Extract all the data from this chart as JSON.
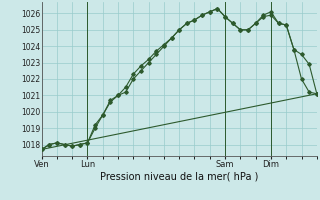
{
  "bg_color": "#cce8e8",
  "grid_color": "#99cccc",
  "line_color": "#2d5a2d",
  "title": "Pression niveau de la mer( hPa )",
  "xtick_labels": [
    "Ven",
    "Lun",
    "Sam",
    "Dim"
  ],
  "xtick_positions": [
    0,
    12,
    48,
    60
  ],
  "ylim": [
    1017.3,
    1026.7
  ],
  "yticks": [
    1018,
    1019,
    1020,
    1021,
    1022,
    1023,
    1024,
    1025,
    1026
  ],
  "xlim": [
    0,
    72
  ],
  "line1_x": [
    0,
    2,
    4,
    6,
    8,
    10,
    12,
    14,
    16,
    18,
    20,
    22,
    24,
    26,
    28,
    30,
    32,
    34,
    36,
    38,
    40,
    42,
    44,
    46,
    48,
    50,
    52,
    54,
    56,
    58,
    60,
    62,
    64,
    66,
    68,
    70,
    72
  ],
  "line1_y": [
    1017.7,
    1018.0,
    1018.1,
    1018.0,
    1017.9,
    1018.0,
    1018.1,
    1019.0,
    1019.8,
    1020.7,
    1021.0,
    1021.5,
    1022.3,
    1022.8,
    1023.2,
    1023.7,
    1024.1,
    1024.5,
    1025.0,
    1025.4,
    1025.6,
    1025.9,
    1026.1,
    1026.3,
    1025.8,
    1025.4,
    1025.0,
    1025.0,
    1025.4,
    1025.9,
    1026.1,
    1025.4,
    1025.3,
    1023.8,
    1023.5,
    1022.9,
    1021.1
  ],
  "line2_x": [
    0,
    2,
    4,
    6,
    8,
    10,
    12,
    14,
    16,
    18,
    20,
    22,
    24,
    26,
    28,
    30,
    32,
    34,
    36,
    38,
    40,
    42,
    44,
    46,
    48,
    50,
    52,
    54,
    56,
    58,
    60,
    62,
    64,
    66,
    68,
    70,
    72
  ],
  "line2_y": [
    1017.7,
    1018.0,
    1018.1,
    1018.0,
    1017.9,
    1018.0,
    1018.1,
    1019.2,
    1019.8,
    1020.6,
    1021.0,
    1021.2,
    1022.0,
    1022.5,
    1023.0,
    1023.5,
    1024.0,
    1024.5,
    1025.0,
    1025.4,
    1025.6,
    1025.9,
    1026.1,
    1026.3,
    1025.8,
    1025.4,
    1025.0,
    1025.0,
    1025.4,
    1025.8,
    1025.9,
    1025.4,
    1025.3,
    1023.8,
    1022.0,
    1021.2,
    1021.1
  ],
  "line3_x": [
    0,
    72
  ],
  "line3_y": [
    1017.7,
    1021.1
  ],
  "vline_positions": [
    12,
    48,
    60
  ],
  "minor_xtick_interval": 4
}
